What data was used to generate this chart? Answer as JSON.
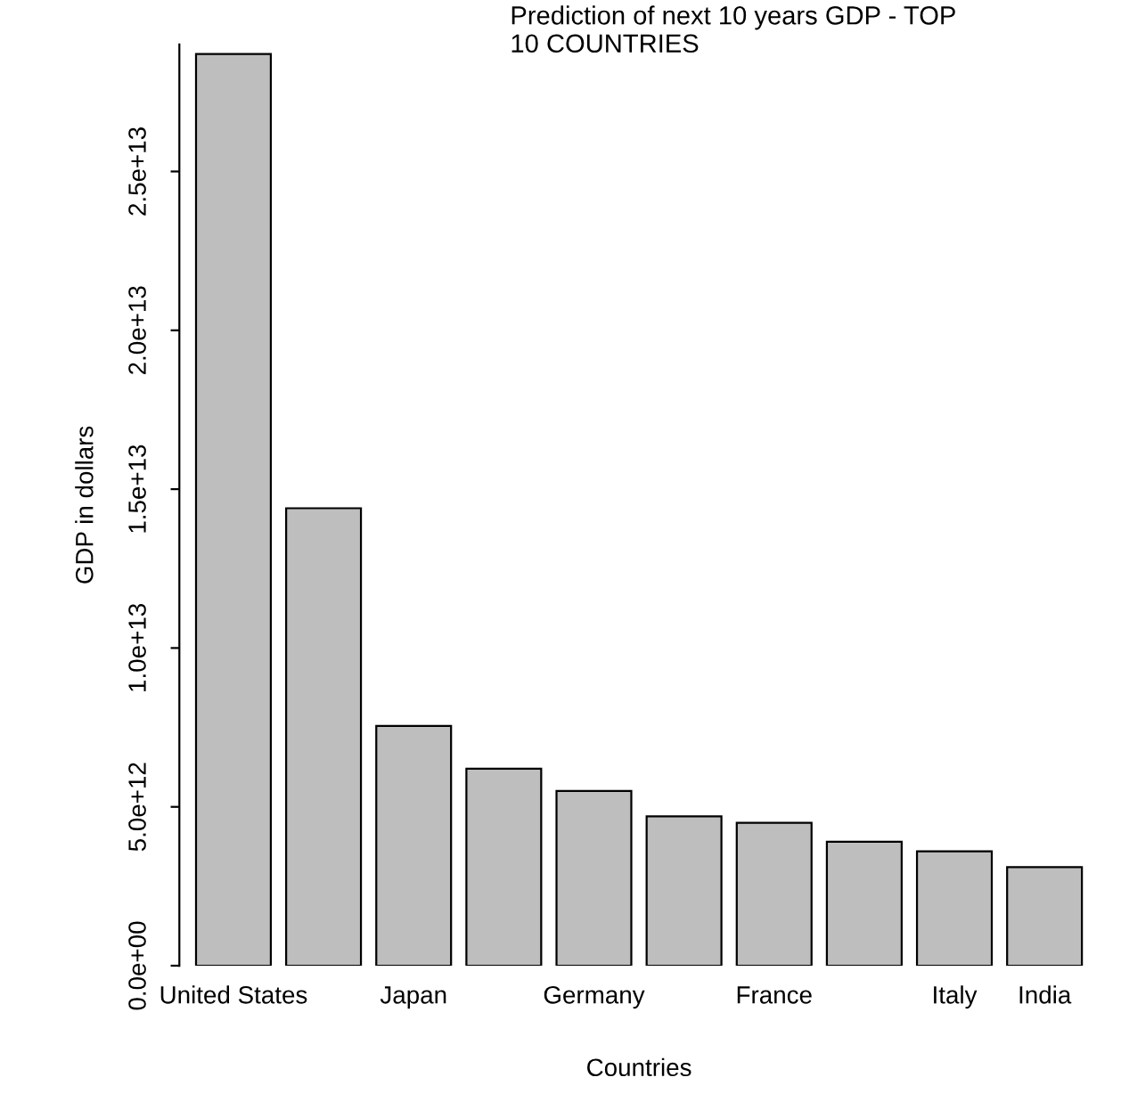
{
  "chart_data": {
    "type": "bar",
    "title": "Prediction of next 10 years GDP - TOP\n10 COUNTRIES",
    "xlabel": "Countries",
    "ylabel": "GDP in dollars",
    "categories": [
      "United States",
      null,
      "Japan",
      null,
      "Germany",
      null,
      "France",
      null,
      "Italy",
      "India"
    ],
    "values": [
      28700000000000.0,
      14400000000000.0,
      7550000000000.0,
      6200000000000.0,
      5500000000000.0,
      4700000000000.0,
      4500000000000.0,
      3900000000000.0,
      3600000000000.0,
      3100000000000.0
    ],
    "color": "#bebebe",
    "ylim": [
      0,
      29000000000000.0
    ],
    "yticks": [
      {
        "value": 0,
        "label": "0.0e+00"
      },
      {
        "value": 5000000000000.0,
        "label": "5.0e+12"
      },
      {
        "value": 10000000000000.0,
        "label": "1.0e+13"
      },
      {
        "value": 15000000000000.0,
        "label": "1.5e+13"
      },
      {
        "value": 20000000000000.0,
        "label": "2.0e+13"
      },
      {
        "value": 25000000000000.0,
        "label": "2.5e+13"
      }
    ],
    "grid": false
  }
}
